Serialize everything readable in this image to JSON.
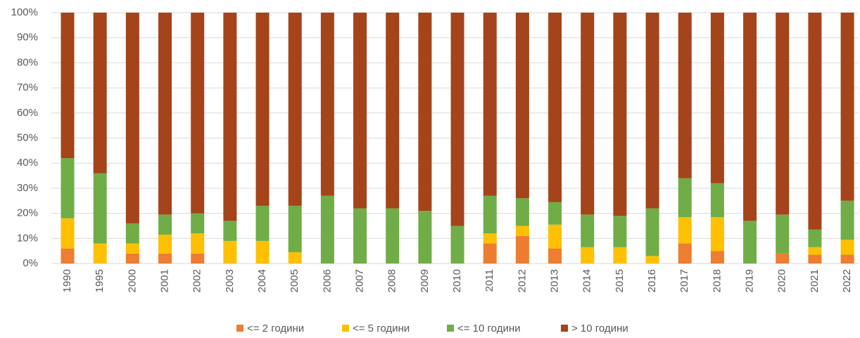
{
  "chart_data": {
    "type": "stacked_bar_100",
    "categories": [
      "1990",
      "1995",
      "2000",
      "2001",
      "2002",
      "2003",
      "2004",
      "2005",
      "2006",
      "2007",
      "2008",
      "2009",
      "2010",
      "2011",
      "2012",
      "2013",
      "2014",
      "2015",
      "2016",
      "2017",
      "2018",
      "2019",
      "2020",
      "2021",
      "2022"
    ],
    "series": [
      {
        "name": "<= 2 години",
        "color": "#ed7d31",
        "values": [
          6,
          0,
          4,
          4,
          4,
          0,
          0,
          0,
          0,
          0,
          0,
          0,
          0,
          8,
          11,
          6,
          0,
          0,
          0,
          8,
          5,
          0,
          4,
          3.5,
          3.5
        ]
      },
      {
        "name": "<= 5 години",
        "color": "#ffc000",
        "values": [
          12,
          8,
          4,
          7.5,
          8,
          9,
          9,
          4.5,
          0,
          0,
          0,
          0,
          0,
          4,
          4,
          9.5,
          6.5,
          6.5,
          3,
          10.5,
          13.5,
          0,
          0,
          3,
          6
        ]
      },
      {
        "name": "<= 10 години",
        "color": "#70ad47",
        "values": [
          24,
          28,
          8,
          8,
          8,
          8,
          14,
          18.5,
          27,
          22,
          22,
          21,
          15,
          15,
          11,
          9,
          13,
          12.5,
          19,
          15.5,
          13.5,
          17,
          15.5,
          7,
          15.5
        ]
      },
      {
        "name": "> 10 години",
        "color": "#a5431b",
        "values": [
          58,
          64,
          84,
          80.5,
          80,
          83,
          77,
          77,
          73,
          78,
          78,
          79,
          85,
          73,
          74,
          75.5,
          80.5,
          81,
          78,
          66,
          68,
          83,
          80.5,
          86.5,
          75
        ]
      }
    ],
    "ylim": [
      0,
      100
    ],
    "yticks": [
      {
        "value": 0,
        "label": "0%"
      },
      {
        "value": 10,
        "label": "10%"
      },
      {
        "value": 20,
        "label": "20%"
      },
      {
        "value": 30,
        "label": "30%"
      },
      {
        "value": 40,
        "label": "40%"
      },
      {
        "value": 50,
        "label": "50%"
      },
      {
        "value": 60,
        "label": "60%"
      },
      {
        "value": 70,
        "label": "70%"
      },
      {
        "value": 80,
        "label": "80%"
      },
      {
        "value": 90,
        "label": "90%"
      },
      {
        "value": 100,
        "label": "100%"
      }
    ],
    "grid": true,
    "legend": "bottom"
  }
}
